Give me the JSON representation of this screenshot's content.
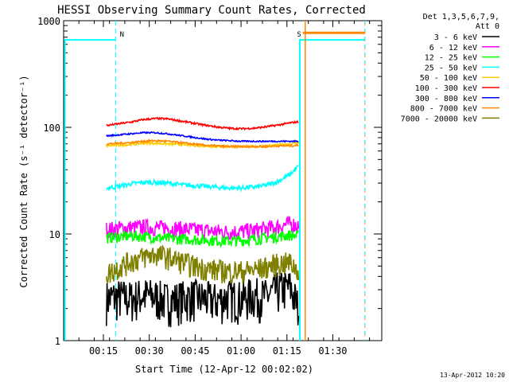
{
  "chart_data": {
    "type": "line",
    "title": "HESSI Observing Summary Count Rates, Corrected",
    "xlabel": "Start Time (12-Apr-12 00:02:02)",
    "ylabel": "Corrected Count Rate (s⁻¹ detector⁻¹)",
    "yscale": "log",
    "ylim": [
      1,
      1000
    ],
    "xlim_minutes": [
      0,
      104
    ],
    "xticks": [
      {
        "label": "00:15",
        "min": 13
      },
      {
        "label": "00:30",
        "min": 28
      },
      {
        "label": "00:45",
        "min": 43
      },
      {
        "label": "01:00",
        "min": 58
      },
      {
        "label": "01:15",
        "min": 73
      },
      {
        "label": "01:30",
        "min": 88
      }
    ],
    "yticks": [
      {
        "label": "1",
        "v": 1
      },
      {
        "label": "10",
        "v": 10
      },
      {
        "label": "100",
        "v": 100
      },
      {
        "label": "1000",
        "v": 1000
      }
    ],
    "legend_header": [
      "Det 1,3,5,6,7,9,",
      "Att 0"
    ],
    "legend_position": "right",
    "series": [
      {
        "name": "3 - 6 keV",
        "color": "#000000",
        "x": [
          14,
          18,
          22,
          26,
          30,
          34,
          38,
          42,
          46,
          50,
          54,
          58,
          62,
          66,
          70,
          74,
          77
        ],
        "y": [
          2.5,
          2.6,
          2.5,
          2.7,
          2.6,
          2.4,
          2.5,
          2.6,
          2.5,
          2.4,
          2.6,
          2.5,
          2.7,
          2.6,
          3.0,
          3.2,
          2.0
        ]
      },
      {
        "name": "6 - 12 keV",
        "color": "#ff00ff",
        "x": [
          14,
          18,
          22,
          26,
          30,
          34,
          38,
          42,
          46,
          50,
          54,
          58,
          62,
          66,
          70,
          74,
          77
        ],
        "y": [
          11,
          11.3,
          11.5,
          11.6,
          11.5,
          11.4,
          11.2,
          11.0,
          10.8,
          10.6,
          10.5,
          10.6,
          10.8,
          11.2,
          11.8,
          12.5,
          12
        ]
      },
      {
        "name": "12 - 25 keV",
        "color": "#00ff00",
        "x": [
          14,
          18,
          22,
          26,
          30,
          34,
          38,
          42,
          46,
          50,
          54,
          58,
          62,
          66,
          70,
          74,
          77
        ],
        "y": [
          9.2,
          9.4,
          9.6,
          9.5,
          9.3,
          9.1,
          9.0,
          8.9,
          8.8,
          8.7,
          8.6,
          8.7,
          8.9,
          9.2,
          9.5,
          9.8,
          9.6
        ]
      },
      {
        "name": "25 - 50 keV",
        "color": "#00ffff",
        "x": [
          14,
          18,
          22,
          26,
          30,
          34,
          38,
          42,
          46,
          50,
          54,
          58,
          62,
          66,
          70,
          74,
          77
        ],
        "y": [
          27,
          28,
          29.5,
          30.5,
          30.5,
          30,
          29,
          28.5,
          28,
          27.5,
          27,
          27,
          27.5,
          28.5,
          31,
          36,
          44
        ]
      },
      {
        "name": "50 - 100 keV",
        "color": "#ffcc00",
        "x": [
          14,
          18,
          22,
          26,
          30,
          34,
          38,
          42,
          46,
          50,
          54,
          58,
          62,
          66,
          70,
          74,
          77
        ],
        "y": [
          67,
          68,
          69,
          71,
          71,
          70,
          69,
          68,
          67,
          66,
          66,
          66,
          66,
          67,
          68,
          70,
          72
        ]
      },
      {
        "name": "100 - 300 keV",
        "color": "#ff0000",
        "x": [
          14,
          18,
          22,
          26,
          30,
          34,
          38,
          42,
          46,
          50,
          54,
          58,
          62,
          66,
          70,
          74,
          77
        ],
        "y": [
          104,
          108,
          112,
          118,
          121,
          120,
          115,
          110,
          105,
          101,
          98,
          97,
          98,
          101,
          105,
          110,
          113
        ]
      },
      {
        "name": "300 - 800 keV",
        "color": "#0000ff",
        "x": [
          14,
          18,
          22,
          26,
          30,
          34,
          38,
          42,
          46,
          50,
          54,
          58,
          62,
          66,
          70,
          74,
          77
        ],
        "y": [
          83,
          85,
          87,
          89,
          89,
          87,
          84,
          81,
          78,
          76,
          75,
          74,
          74,
          74,
          74,
          74,
          74
        ]
      },
      {
        "name": "800 - 7000 keV",
        "color": "#ff8800",
        "x": [
          14,
          18,
          22,
          26,
          30,
          34,
          38,
          42,
          46,
          50,
          54,
          58,
          62,
          66,
          70,
          74,
          77
        ],
        "y": [
          70,
          71,
          72,
          74,
          75,
          74,
          72,
          70,
          68,
          67,
          66,
          66,
          66,
          66,
          67,
          67,
          68
        ]
      },
      {
        "name": "7000 - 20000 keV",
        "color": "#808000",
        "x": [
          14,
          18,
          22,
          26,
          30,
          34,
          38,
          42,
          46,
          50,
          54,
          58,
          62,
          66,
          70,
          74,
          77
        ],
        "y": [
          4.2,
          4.9,
          5.6,
          6.1,
          6.5,
          6.1,
          5.6,
          5.1,
          4.8,
          4.6,
          4.5,
          4.5,
          4.6,
          4.9,
          5.3,
          5.4,
          4.5
        ]
      }
    ],
    "annotations": [
      {
        "label": "N",
        "min": 17,
        "color": "#00ffff"
      },
      {
        "label": "S",
        "min": 77.5,
        "color": "#ff8800"
      }
    ],
    "footer_timestamp": "13-Apr-2012 10:20"
  }
}
